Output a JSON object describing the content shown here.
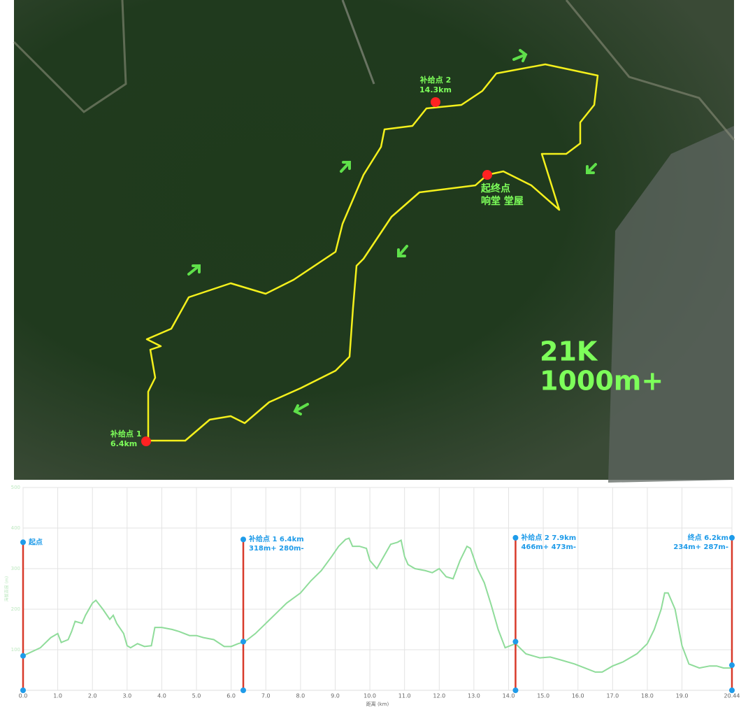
{
  "map": {
    "labels": [
      {
        "lines": [
          "补给点 2",
          "14.3km"
        ]
      },
      {
        "lines": [
          "起终点",
          "响堂 堂屋"
        ]
      },
      {
        "lines": [
          "补给点 1",
          "6.4km"
        ]
      },
      {
        "lines": [
          "21K",
          "1000m+"
        ]
      }
    ]
  },
  "chart_data": {
    "type": "line",
    "x_label": "距离 (km)",
    "y_label": "海拔高度 (m)",
    "color": "#8fdc9a",
    "xlim": [
      0,
      20.44
    ],
    "ylim": [
      0,
      500
    ],
    "xticks": [
      {
        "value": 0,
        "label": "0.0"
      },
      {
        "value": 1,
        "label": "1.0"
      },
      {
        "value": 2,
        "label": "2.0"
      },
      {
        "value": 3,
        "label": "3.0"
      },
      {
        "value": 4,
        "label": "4.0"
      },
      {
        "value": 5,
        "label": "5.0"
      },
      {
        "value": 6,
        "label": "6.0"
      },
      {
        "value": 7,
        "label": "7.0"
      },
      {
        "value": 8,
        "label": "8.0"
      },
      {
        "value": 9,
        "label": "9.0"
      },
      {
        "value": 10,
        "label": "10.0"
      },
      {
        "value": 11,
        "label": "11.0"
      },
      {
        "value": 12,
        "label": "12.0"
      },
      {
        "value": 13,
        "label": "13.0"
      },
      {
        "value": 14,
        "label": "14.0"
      },
      {
        "value": 15,
        "label": "15.0"
      },
      {
        "value": 16,
        "label": "16.0"
      },
      {
        "value": 17,
        "label": "17.0"
      },
      {
        "value": 18,
        "label": "18.0"
      },
      {
        "value": 19,
        "label": "19.0"
      },
      20.44
    ],
    "yticks": [
      100,
      200,
      300,
      400,
      500
    ],
    "grid": true,
    "x": [
      0,
      0.5,
      0.8,
      1.0,
      1.1,
      1.3,
      1.4,
      1.5,
      1.7,
      1.8,
      2.0,
      2.1,
      2.3,
      2.5,
      2.6,
      2.7,
      2.9,
      3.0,
      3.1,
      3.3,
      3.5,
      3.7,
      3.8,
      4.0,
      4.3,
      4.5,
      4.8,
      5.0,
      5.2,
      5.5,
      5.8,
      6.0,
      6.2,
      6.4,
      6.7,
      7.0,
      7.3,
      7.6,
      8.0,
      8.3,
      8.6,
      8.9,
      9.1,
      9.3,
      9.4,
      9.5,
      9.7,
      9.9,
      10.0,
      10.2,
      10.4,
      10.6,
      10.8,
      10.9,
      11.0,
      11.1,
      11.3,
      11.6,
      11.8,
      12.0,
      12.2,
      12.4,
      12.6,
      12.8,
      12.9,
      13.1,
      13.3,
      13.5,
      13.7,
      13.9,
      14.2,
      14.5,
      14.9,
      15.2,
      15.5,
      15.9,
      16.2,
      16.5,
      16.7,
      17.0,
      17.3,
      17.7,
      18.0,
      18.2,
      18.4,
      18.5,
      18.6,
      18.8,
      19.0,
      19.2,
      19.5,
      19.8,
      20.0,
      20.2,
      20.44
    ],
    "values": [
      85,
      105,
      130,
      140,
      118,
      125,
      145,
      170,
      165,
      185,
      215,
      222,
      200,
      175,
      185,
      165,
      140,
      110,
      105,
      115,
      108,
      110,
      155,
      155,
      150,
      145,
      135,
      135,
      130,
      125,
      108,
      108,
      115,
      120,
      140,
      165,
      190,
      215,
      240,
      270,
      295,
      330,
      355,
      372,
      375,
      355,
      355,
      350,
      320,
      300,
      330,
      360,
      365,
      370,
      330,
      310,
      300,
      295,
      290,
      300,
      280,
      275,
      320,
      355,
      350,
      300,
      265,
      210,
      150,
      105,
      115,
      90,
      80,
      82,
      75,
      65,
      55,
      45,
      45,
      60,
      70,
      90,
      115,
      150,
      200,
      240,
      240,
      200,
      110,
      65,
      55,
      60,
      60,
      55,
      55
    ],
    "markers": [
      {
        "x": 0,
        "top": 365,
        "elevation": 85,
        "lines": [
          "起点"
        ]
      },
      {
        "x": 6.35,
        "top": 372,
        "elevation": 120,
        "lines": [
          "补给点 1   6.4km",
          "318m+ 280m-"
        ]
      },
      {
        "x": 14.2,
        "top": 376,
        "elevation": 120,
        "lines": [
          "补给点 2   7.9km",
          "466m+ 473m-"
        ]
      },
      {
        "x": 20.44,
        "top": 376,
        "elevation": 62,
        "lines": [
          "终点   6.2km",
          "234m+ 287m-"
        ]
      }
    ]
  }
}
